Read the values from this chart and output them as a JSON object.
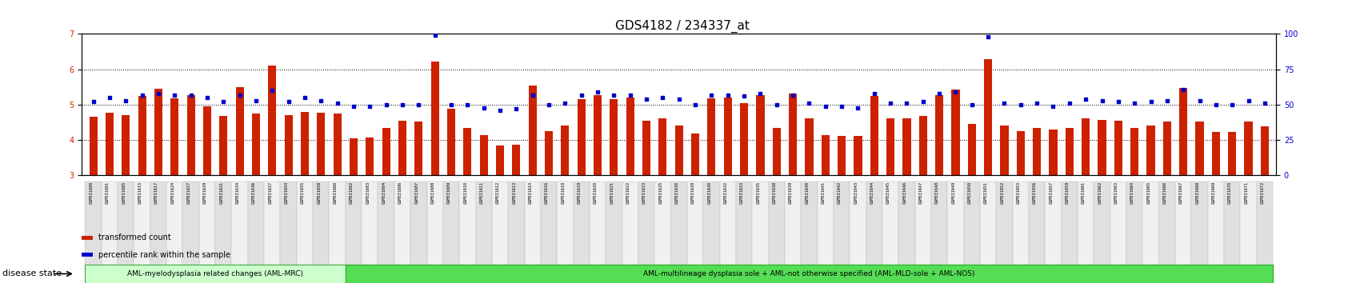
{
  "title": "GDS4182 / 234337_at",
  "samples": [
    "GSM531600",
    "GSM531601",
    "GSM531605",
    "GSM531615",
    "GSM531617",
    "GSM531624",
    "GSM531627",
    "GSM531629",
    "GSM531631",
    "GSM531634",
    "GSM531636",
    "GSM531637",
    "GSM531654",
    "GSM531655",
    "GSM531658",
    "GSM531660",
    "GSM531602",
    "GSM531603",
    "GSM531604",
    "GSM531606",
    "GSM531607",
    "GSM531608",
    "GSM531609",
    "GSM531610",
    "GSM531611",
    "GSM531612",
    "GSM531613",
    "GSM531614",
    "GSM531616",
    "GSM531618",
    "GSM531619",
    "GSM531620",
    "GSM531621",
    "GSM531622",
    "GSM531623",
    "GSM531625",
    "GSM531626",
    "GSM531628",
    "GSM531630",
    "GSM531632",
    "GSM531633",
    "GSM531635",
    "GSM531638",
    "GSM531639",
    "GSM531640",
    "GSM531641",
    "GSM531642",
    "GSM531643",
    "GSM531644",
    "GSM531645",
    "GSM531646",
    "GSM531647",
    "GSM531648",
    "GSM531649",
    "GSM531650",
    "GSM531651",
    "GSM531652",
    "GSM531653",
    "GSM531656",
    "GSM531657",
    "GSM531659",
    "GSM531661",
    "GSM531662",
    "GSM531663",
    "GSM531664",
    "GSM531665",
    "GSM531666",
    "GSM531667",
    "GSM531668",
    "GSM531669",
    "GSM531670",
    "GSM531671",
    "GSM531672"
  ],
  "bar_values": [
    4.65,
    4.78,
    4.71,
    5.25,
    5.45,
    5.18,
    5.28,
    4.96,
    4.68,
    5.5,
    4.75,
    6.1,
    4.7,
    4.8,
    4.78,
    4.75,
    4.05,
    4.08,
    4.35,
    4.55,
    4.52,
    6.22,
    4.88,
    4.35,
    4.15,
    3.85,
    3.88,
    5.55,
    4.25,
    4.42,
    5.15,
    5.28,
    5.15,
    5.2,
    4.55,
    4.62,
    4.42,
    4.18,
    5.18,
    5.2,
    5.05,
    5.28,
    4.35,
    5.32,
    4.62,
    4.15,
    4.12,
    4.11,
    5.25,
    4.62,
    4.62,
    4.68,
    5.28,
    5.42,
    4.45,
    6.28,
    4.42,
    4.25,
    4.35,
    4.3,
    4.35,
    4.62,
    4.58,
    4.55,
    4.35,
    4.42,
    4.52,
    5.48,
    4.52,
    4.22,
    4.22,
    4.52,
    4.38
  ],
  "dot_values": [
    52,
    55,
    53,
    57,
    58,
    57,
    57,
    55,
    52,
    57,
    53,
    60,
    52,
    55,
    53,
    51,
    49,
    49,
    50,
    50,
    50,
    99,
    50,
    50,
    48,
    46,
    47,
    57,
    50,
    51,
    57,
    59,
    57,
    57,
    54,
    55,
    54,
    50,
    57,
    57,
    56,
    58,
    50,
    57,
    51,
    49,
    49,
    48,
    58,
    51,
    51,
    52,
    58,
    59,
    50,
    98,
    51,
    50,
    51,
    49,
    51,
    54,
    53,
    52,
    51,
    52,
    53,
    61,
    53,
    50,
    50,
    53,
    51
  ],
  "group1_count": 16,
  "group1_label": "AML-myelodysplasia related changes (AML-MRC)",
  "group2_label": "AML-multilineage dysplasia sole + AML-not otherwise specified (AML-MLD-sole + AML-NOS)",
  "bar_color": "#cc2200",
  "dot_color": "#0000cc",
  "ylim_left": [
    3.0,
    7.0
  ],
  "ylim_right": [
    0,
    100
  ],
  "yticks_left": [
    3,
    4,
    5,
    6,
    7
  ],
  "yticks_right": [
    0,
    25,
    50,
    75,
    100
  ],
  "grid_values": [
    4.0,
    5.0,
    6.0
  ],
  "bg_color": "#ffffff",
  "plot_bg": "#ffffff",
  "group_bg_color1": "#ccffcc",
  "group_bg_color2": "#55dd55",
  "tick_label_size": 4.5,
  "disease_state_label": "disease state",
  "legend_bar_label": "transformed count",
  "legend_dot_label": "percentile rank within the sample"
}
